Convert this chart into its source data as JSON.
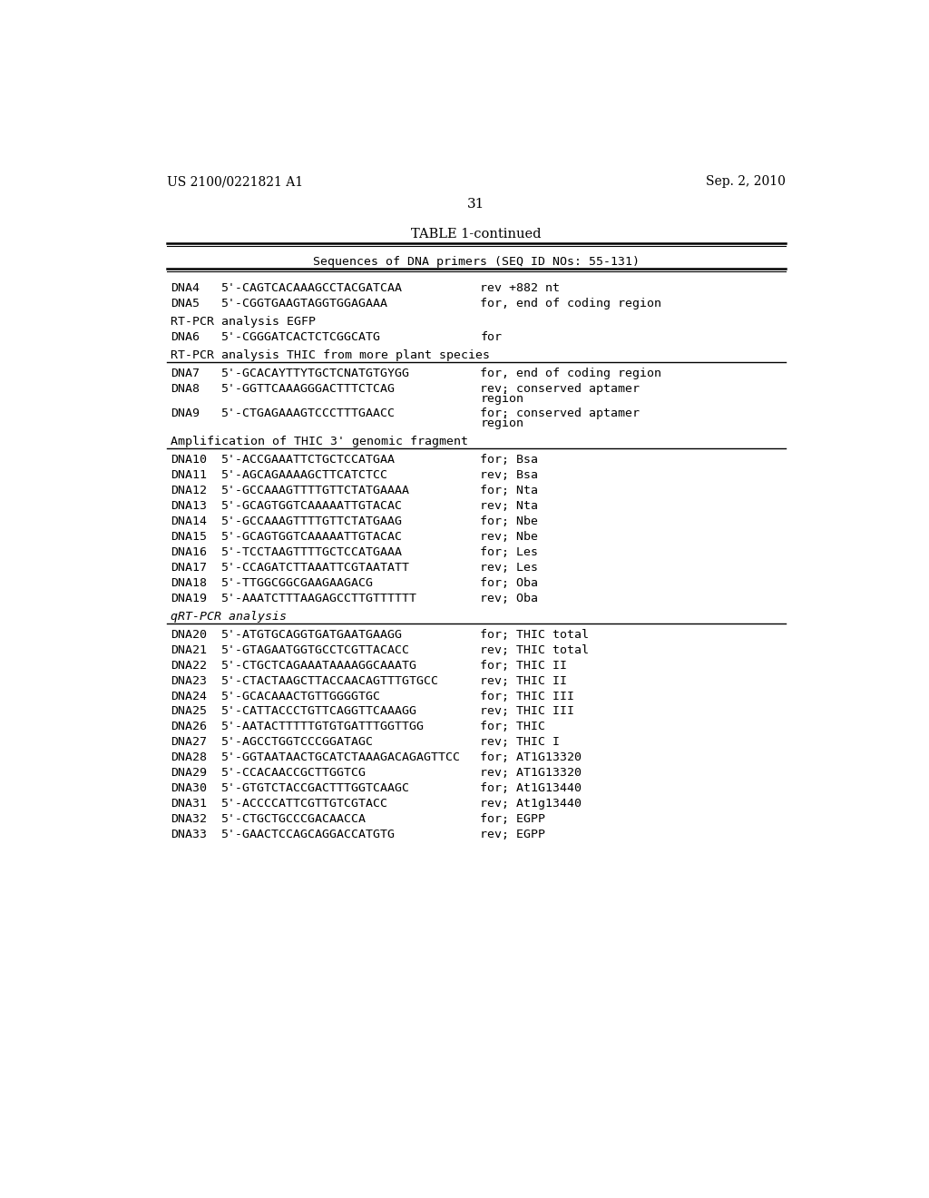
{
  "bg_color": "#ffffff",
  "header_left": "US 2100/0221821 A1",
  "header_right": "Sep. 2, 2010",
  "page_number": "31",
  "table_title": "TABLE 1-continued",
  "subtitle": "Sequences of DNA primers (SEQ ID NOs: 55-131)",
  "font_size": 9.5,
  "mono_font": "DejaVu Sans Mono",
  "rows": [
    {
      "label": "DNA4",
      "seq": "5'-CAGTCACAAAGCCTACGATCAA",
      "desc": "rev +882 nt",
      "section": null,
      "section_italic": false,
      "divider_before": false,
      "multi_line_desc": false
    },
    {
      "label": "DNA5",
      "seq": "5'-CGGTGAAGTAGGTGGAGAAA",
      "desc": "for, end of coding region",
      "section": null,
      "section_italic": false,
      "divider_before": false,
      "multi_line_desc": false
    },
    {
      "label": "DNA6",
      "seq": "5'-CGGGATCACTCTCGGCATG",
      "desc": "for",
      "section": "RT-PCR analysis EGFP",
      "section_italic": false,
      "divider_before": false,
      "multi_line_desc": false
    },
    {
      "label": "DNA7",
      "seq": "5'-GCACAYTTYTGCTCNATGTGYGG",
      "desc": "for, end of coding region",
      "section": "RT-PCR analysis THIC from more plant species",
      "section_italic": false,
      "divider_before": true,
      "multi_line_desc": false
    },
    {
      "label": "DNA8",
      "seq": "5'-GGTTCAAAGGGACTTTCTCAG",
      "desc": "rev; conserved aptamer",
      "section": null,
      "section_italic": false,
      "divider_before": false,
      "multi_line_desc": true,
      "desc2": "region"
    },
    {
      "label": "DNA9",
      "seq": "5'-CTGAGAAAGTCCCTTTGAACC",
      "desc": "for; conserved aptamer",
      "section": null,
      "section_italic": false,
      "divider_before": false,
      "multi_line_desc": true,
      "desc2": "region"
    },
    {
      "label": "DNA10",
      "seq": "5'-ACCGAAATTCTGCTCCATGAA",
      "desc": "for; Bsa",
      "section": "Amplification of THIC 3' genomic fragment",
      "section_italic": false,
      "divider_before": true,
      "multi_line_desc": false
    },
    {
      "label": "DNA11",
      "seq": "5'-AGCAGAAAAGCTTCATCTCC",
      "desc": "rev; Bsa",
      "section": null,
      "section_italic": false,
      "divider_before": false,
      "multi_line_desc": false
    },
    {
      "label": "DNA12",
      "seq": "5'-GCCAAAGTTTTGTTCTATGAAAA",
      "desc": "for; Nta",
      "section": null,
      "section_italic": false,
      "divider_before": false,
      "multi_line_desc": false
    },
    {
      "label": "DNA13",
      "seq": "5'-GCAGTGGTCAAAAATTGTACAC",
      "desc": "rev; Nta",
      "section": null,
      "section_italic": false,
      "divider_before": false,
      "multi_line_desc": false
    },
    {
      "label": "DNA14",
      "seq": "5'-GCCAAAGTTTTGTTCTATGAAG",
      "desc": "for; Nbe",
      "section": null,
      "section_italic": false,
      "divider_before": false,
      "multi_line_desc": false
    },
    {
      "label": "DNA15",
      "seq": "5'-GCAGTGGTCAAAAATTGTACAC",
      "desc": "rev; Nbe",
      "section": null,
      "section_italic": false,
      "divider_before": false,
      "multi_line_desc": false
    },
    {
      "label": "DNA16",
      "seq": "5'-TCCTAAGTTTTGCTCCATGAAA",
      "desc": "for; Les",
      "section": null,
      "section_italic": false,
      "divider_before": false,
      "multi_line_desc": false
    },
    {
      "label": "DNA17",
      "seq": "5'-CCAGATCTTAAATTCGTAATATT",
      "desc": "rev; Les",
      "section": null,
      "section_italic": false,
      "divider_before": false,
      "multi_line_desc": false
    },
    {
      "label": "DNA18",
      "seq": "5'-TTGGCGGCGAAGAAGACG",
      "desc": "for; Oba",
      "section": null,
      "section_italic": false,
      "divider_before": false,
      "multi_line_desc": false
    },
    {
      "label": "DNA19",
      "seq": "5'-AAATCTTTAAGAGCCTTGTTTTTT",
      "desc": "rev; Oba",
      "section": null,
      "section_italic": false,
      "divider_before": false,
      "multi_line_desc": false
    },
    {
      "label": "DNA20",
      "seq": "5'-ATGTGCAGGTGATGAATGAAGG",
      "desc": "for; THIC total",
      "section": "qRT-PCR analysis",
      "section_italic": true,
      "divider_before": true,
      "multi_line_desc": false
    },
    {
      "label": "DNA21",
      "seq": "5'-GTAGAATGGTGCCTCGTTACACC",
      "desc": "rev; THIC total",
      "section": null,
      "section_italic": false,
      "divider_before": false,
      "multi_line_desc": false
    },
    {
      "label": "DNA22",
      "seq": "5'-CTGCTCAGAAATAAAAGGCAAATG",
      "desc": "for; THIC II",
      "section": null,
      "section_italic": false,
      "divider_before": false,
      "multi_line_desc": false
    },
    {
      "label": "DNA23",
      "seq": "5'-CTACTAAGCTTACCAACAGTTTGTGCC",
      "desc": "rev; THIC II",
      "section": null,
      "section_italic": false,
      "divider_before": false,
      "multi_line_desc": false
    },
    {
      "label": "DNA24",
      "seq": "5'-GCACAAACTGTTGGGGTGC",
      "desc": "for; THIC III",
      "section": null,
      "section_italic": false,
      "divider_before": false,
      "multi_line_desc": false
    },
    {
      "label": "DNA25",
      "seq": "5'-CATTACCCTGTTCAGGTTCAAAGG",
      "desc": "rev; THIC III",
      "section": null,
      "section_italic": false,
      "divider_before": false,
      "multi_line_desc": false
    },
    {
      "label": "DNA26",
      "seq": "5'-AATACTTTTTGTGTGATTTGGTTGG",
      "desc": "for; THIC",
      "section": null,
      "section_italic": false,
      "divider_before": false,
      "multi_line_desc": false
    },
    {
      "label": "DNA27",
      "seq": "5'-AGCCTGGTCCCGGATAGC",
      "desc": "rev; THIC I",
      "section": null,
      "section_italic": false,
      "divider_before": false,
      "multi_line_desc": false
    },
    {
      "label": "DNA28",
      "seq": "5'-GGTAATAACTGCATCTAAAGACAGAGTTCC",
      "desc": "for; AT1G13320",
      "section": null,
      "section_italic": false,
      "divider_before": false,
      "multi_line_desc": false
    },
    {
      "label": "DNA29",
      "seq": "5'-CCACAACCGCTTGGTCG",
      "desc": "rev; AT1G13320",
      "section": null,
      "section_italic": false,
      "divider_before": false,
      "multi_line_desc": false
    },
    {
      "label": "DNA30",
      "seq": "5'-GTGTCTACCGACTTTGGTCAAGC",
      "desc": "for; At1G13440",
      "section": null,
      "section_italic": false,
      "divider_before": false,
      "multi_line_desc": false
    },
    {
      "label": "DNA31",
      "seq": "5'-ACCCCATTCGTTGTCGTACC",
      "desc": "rev; At1g13440",
      "section": null,
      "section_italic": false,
      "divider_before": false,
      "multi_line_desc": false
    },
    {
      "label": "DNA32",
      "seq": "5'-CTGCTGCCCGACAACCA",
      "desc": "for; EGPP",
      "section": null,
      "section_italic": false,
      "divider_before": false,
      "multi_line_desc": false
    },
    {
      "label": "DNA33",
      "seq": "5'-GAACTCCAGCAGGACCATGTG",
      "desc": "rev; EGPP",
      "section": null,
      "section_italic": false,
      "divider_before": false,
      "multi_line_desc": false
    }
  ]
}
